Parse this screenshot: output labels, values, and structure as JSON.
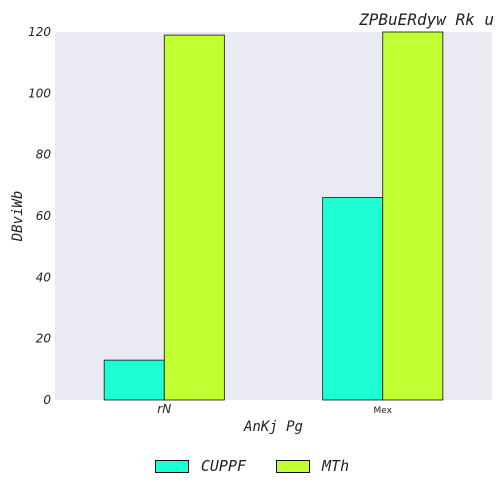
{
  "chart_data": {
    "type": "bar",
    "title": "ZPBuERdyw Rk u",
    "xlabel": "AnKj Pg",
    "ylabel": "DBviWb",
    "categories": [
      "rN",
      "Mex"
    ],
    "series": [
      {
        "name": "CUPPF",
        "values": [
          13,
          66
        ],
        "color": "#1fffd6"
      },
      {
        "name": "MTh",
        "values": [
          119,
          120
        ],
        "color": "#c1ff33"
      }
    ],
    "ylim": [
      0,
      120
    ],
    "yticks": [
      0,
      20,
      40,
      60,
      80,
      100,
      120
    ],
    "grid": false,
    "background": "#eaeaf2",
    "legend_position": "bottom-center"
  }
}
